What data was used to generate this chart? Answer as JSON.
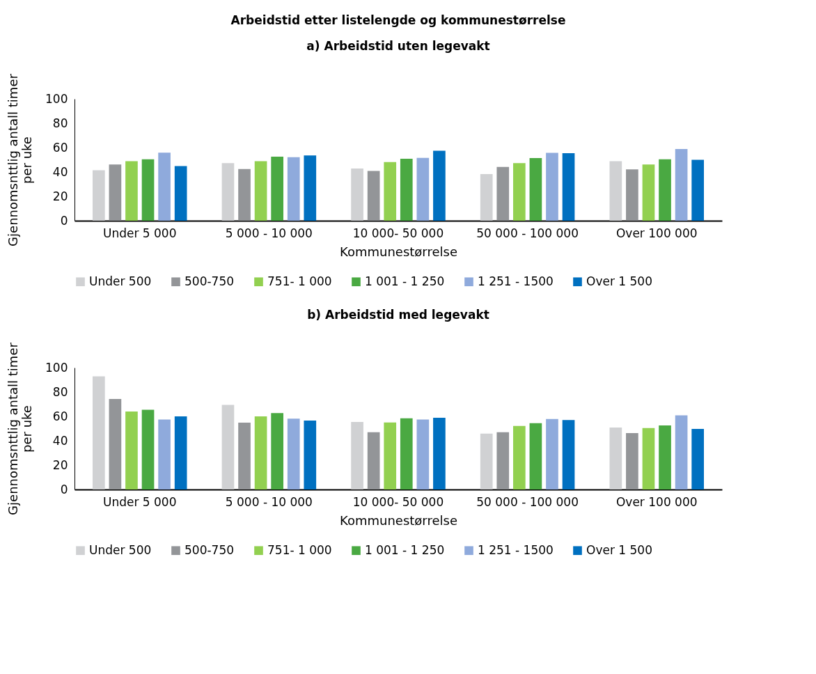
{
  "chart_data": [
    {
      "type": "bar",
      "title": "Arbeidstid etter listelengde og kommunestørrelse",
      "subtitle": "a) Arbeidstid uten legevakt",
      "xlabel": "Kommunestørrelse",
      "ylabel": "Gjennomsnttlig antall timer per uke",
      "categories": [
        "Under 5 000",
        "5 000 - 10 000",
        "10 000- 50 000",
        "50 000 - 100 000",
        "Over 100 000"
      ],
      "series": [
        {
          "name": "Under 500",
          "color": "#d0d1d3",
          "values": [
            41.4,
            47.3,
            42.9,
            38.3,
            48.9
          ]
        },
        {
          "name": "500-750",
          "color": "#939598",
          "values": [
            46.2,
            42.5,
            40.9,
            44.2,
            42.2
          ]
        },
        {
          "name": "751- 1 000",
          "color": "#92d050",
          "values": [
            48.9,
            48.9,
            48.2,
            47.3,
            46.2
          ]
        },
        {
          "name": "1 001 - 1 250",
          "color": "#4aa942",
          "values": [
            50.4,
            52.6,
            50.9,
            51.5,
            50.5
          ]
        },
        {
          "name": "1 251 - 1500",
          "color": "#8faadc",
          "values": [
            55.8,
            52.2,
            51.6,
            55.7,
            58.9
          ]
        },
        {
          "name": "Over 1 500",
          "color": "#0070c0",
          "values": [
            44.9,
            53.6,
            57.5,
            55.5,
            50.0
          ]
        }
      ],
      "ylim": [
        0,
        100
      ],
      "yticks": [
        0,
        20,
        40,
        60,
        80,
        100
      ],
      "grid": false,
      "legend": "bottom"
    },
    {
      "type": "bar",
      "title": "b) Arbeidstid med legevakt",
      "xlabel": "Kommunestørrelse",
      "ylabel": "Gjennomsnttlig antall timer per uke",
      "categories": [
        "Under 5 000",
        "5 000 - 10 000",
        "10 000- 50 000",
        "50 000 - 100 000",
        "Over 100 000"
      ],
      "series": [
        {
          "name": "Under 500",
          "color": "#d0d1d3",
          "values": [
            92.8,
            69.4,
            55.5,
            45.8,
            50.8
          ]
        },
        {
          "name": "500-750",
          "color": "#939598",
          "values": [
            74.3,
            54.8,
            47.0,
            47.0,
            46.3
          ]
        },
        {
          "name": "751- 1 000",
          "color": "#92d050",
          "values": [
            64.0,
            60.0,
            55.0,
            52.1,
            50.5
          ]
        },
        {
          "name": "1 001 - 1 250",
          "color": "#4aa942",
          "values": [
            65.5,
            62.7,
            58.4,
            54.4,
            52.6
          ]
        },
        {
          "name": "1 251 - 1500",
          "color": "#8faadc",
          "values": [
            57.5,
            58.2,
            57.5,
            57.9,
            60.9
          ]
        },
        {
          "name": "Over 1 500",
          "color": "#0070c0",
          "values": [
            60.0,
            56.6,
            58.8,
            57.0,
            49.7
          ]
        }
      ],
      "ylim": [
        0,
        100
      ],
      "yticks": [
        0,
        20,
        40,
        60,
        80,
        100
      ],
      "grid": false,
      "legend": "bottom"
    }
  ]
}
